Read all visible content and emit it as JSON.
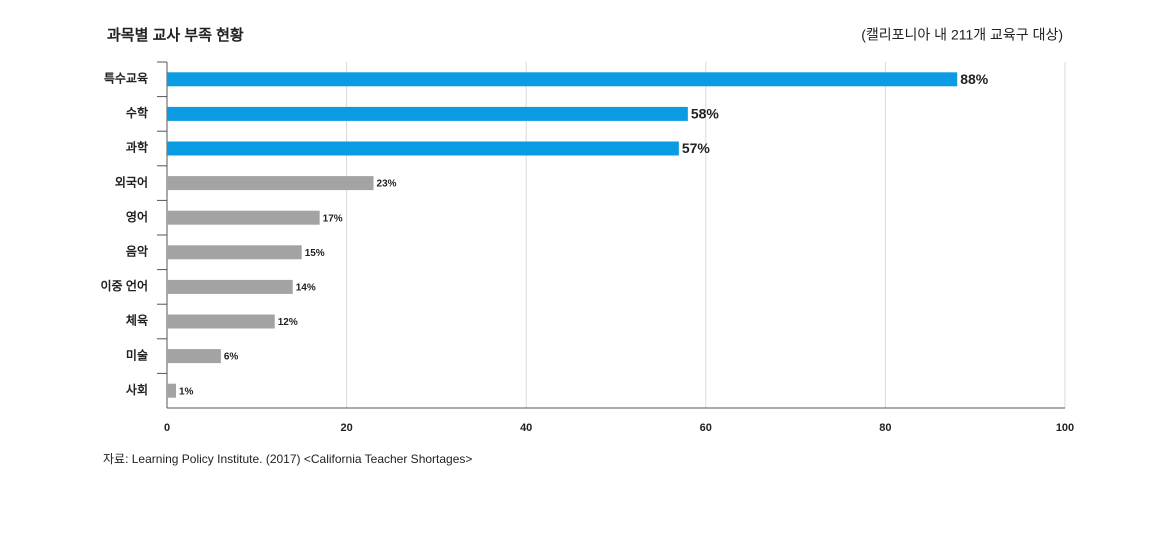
{
  "chart_data": {
    "type": "bar",
    "orientation": "horizontal",
    "title": "과목별 교사 부족 현황",
    "subtitle": "(캘리포니아 내 211개 교육구 대상)",
    "source": "자료: Learning Policy Institute. (2017) <California Teacher Shortages>",
    "categories": [
      "특수교육",
      "수학",
      "과학",
      "외국어",
      "영어",
      "음악",
      "이중 언어",
      "체육",
      "미술",
      "사회"
    ],
    "values": [
      88,
      58,
      57,
      23,
      17,
      15,
      14,
      12,
      6,
      1
    ],
    "value_labels": [
      "88%",
      "58%",
      "57%",
      "23%",
      "17%",
      "15%",
      "14%",
      "12%",
      "6%",
      "1%"
    ],
    "colors": [
      "#0a9be3",
      "#0a9be3",
      "#0a9be3",
      "#a3a3a3",
      "#a3a3a3",
      "#a3a3a3",
      "#a3a3a3",
      "#a3a3a3",
      "#a3a3a3",
      "#a3a3a3"
    ],
    "xlim": [
      0,
      100
    ],
    "xticks": [
      0,
      20,
      40,
      60,
      80,
      100
    ],
    "grid": true
  }
}
